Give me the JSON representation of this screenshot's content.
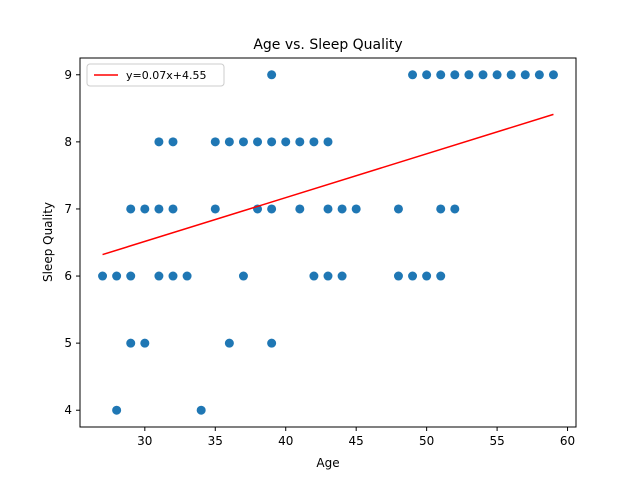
{
  "chart_data": {
    "type": "scatter",
    "title": "Age vs. Sleep Quality",
    "xlabel": "Age",
    "ylabel": "Sleep Quality",
    "xlim": [
      25.4,
      60.6
    ],
    "ylim": [
      3.75,
      9.25
    ],
    "xticks": [
      30,
      35,
      40,
      45,
      50,
      55,
      60
    ],
    "yticks": [
      4,
      5,
      6,
      7,
      8,
      9
    ],
    "grid": false,
    "legend_position": "top-left",
    "point_color": "#1f77b4",
    "line_color": "#ff0000",
    "points": [
      [
        27,
        6
      ],
      [
        28,
        6
      ],
      [
        28,
        4
      ],
      [
        29,
        7
      ],
      [
        29,
        6
      ],
      [
        29,
        5
      ],
      [
        30,
        7
      ],
      [
        30,
        5
      ],
      [
        31,
        8
      ],
      [
        31,
        7
      ],
      [
        31,
        6
      ],
      [
        32,
        8
      ],
      [
        32,
        7
      ],
      [
        32,
        6
      ],
      [
        33,
        6
      ],
      [
        34,
        4
      ],
      [
        35,
        8
      ],
      [
        35,
        7
      ],
      [
        36,
        8
      ],
      [
        36,
        5
      ],
      [
        37,
        8
      ],
      [
        37,
        6
      ],
      [
        38,
        8
      ],
      [
        38,
        7
      ],
      [
        39,
        9
      ],
      [
        39,
        8
      ],
      [
        39,
        7
      ],
      [
        39,
        5
      ],
      [
        40,
        8
      ],
      [
        41,
        8
      ],
      [
        41,
        7
      ],
      [
        42,
        8
      ],
      [
        42,
        6
      ],
      [
        43,
        8
      ],
      [
        43,
        7
      ],
      [
        43,
        6
      ],
      [
        44,
        7
      ],
      [
        44,
        6
      ],
      [
        45,
        7
      ],
      [
        48,
        7
      ],
      [
        48,
        6
      ],
      [
        49,
        9
      ],
      [
        49,
        6
      ],
      [
        50,
        9
      ],
      [
        50,
        6
      ],
      [
        51,
        9
      ],
      [
        51,
        7
      ],
      [
        51,
        6
      ],
      [
        52,
        9
      ],
      [
        52,
        7
      ],
      [
        53,
        9
      ],
      [
        54,
        9
      ],
      [
        55,
        9
      ],
      [
        56,
        9
      ],
      [
        57,
        9
      ],
      [
        58,
        9
      ],
      [
        59,
        9
      ]
    ],
    "series": [
      {
        "name": "y=0.07x+4.55",
        "type": "line",
        "x": [
          27,
          59
        ],
        "y": [
          6.32,
          8.41
        ]
      }
    ]
  }
}
